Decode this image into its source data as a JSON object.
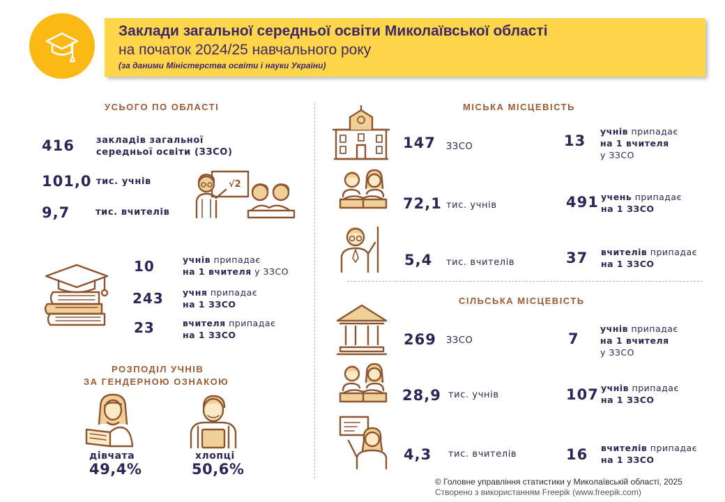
{
  "header": {
    "title_line1": "Заклади загальної середньої освіти Миколаївської області",
    "title_line2": "на початок 2024/25 навчального року",
    "source_note": "(за даними Міністерства освіти і науки України)"
  },
  "region_total": {
    "heading": "УСЬОГО ПО ОБЛАСТІ",
    "schools": {
      "value": "416",
      "label_line1": "закладів загальної",
      "label_line2": "середньої освіти (ЗЗСО)"
    },
    "students": {
      "value": "101,0",
      "label": "тис. учнів"
    },
    "teachers": {
      "value": "9,7",
      "label": "тис. вчителів"
    },
    "ratios": [
      {
        "value": "10",
        "bold1": "учнів",
        "rest1": " припадає",
        "bold2": "на 1 вчителя",
        "rest2": " у ЗЗСО"
      },
      {
        "value": "243",
        "bold1": "учня",
        "rest1": " припадає",
        "bold2": "на 1 ЗЗСО",
        "rest2": ""
      },
      {
        "value": "23",
        "bold1": "вчителя",
        "rest1": " припадає",
        "bold2": "на 1 ЗЗСО",
        "rest2": ""
      }
    ]
  },
  "gender": {
    "heading_line1": "РОЗПОДІЛ УЧНІВ",
    "heading_line2": "ЗА ГЕНДЕРНОЮ ОЗНАКОЮ",
    "girls": {
      "label": "дівчата",
      "value": "49,4%",
      "share": 49.4
    },
    "boys": {
      "label": "хлопці",
      "value": "50,6%",
      "share": 50.6
    }
  },
  "urban": {
    "heading": "МІСЬКА МІСЦЕВІСТЬ",
    "schools": {
      "value": "147",
      "label": "ЗЗСО"
    },
    "students": {
      "value": "72,1",
      "label": "тис. учнів"
    },
    "teachers": {
      "value": "5,4",
      "label": "тис. вчителів"
    },
    "ratio_students_per_teacher": {
      "value": "13",
      "bold1": "учнів",
      "rest1": " припадає",
      "bold2": "на 1 вчителя",
      "line3": "у ЗЗСО"
    },
    "ratio_students_per_school": {
      "value": "491",
      "bold1": "учень",
      "rest1": " припадає",
      "bold2": "на 1 ЗЗСО"
    },
    "ratio_teachers_per_school": {
      "value": "37",
      "bold1": "вчителів",
      "rest1": " припадає",
      "bold2": "на 1 ЗЗСО"
    }
  },
  "rural": {
    "heading": "СІЛЬСЬКА МІСЦЕВІСТЬ",
    "schools": {
      "value": "269",
      "label": "ЗЗСО"
    },
    "students": {
      "value": "28,9",
      "label": "тис. учнів"
    },
    "teachers": {
      "value": "4,3",
      "label": "тис. вчителів"
    },
    "ratio_students_per_teacher": {
      "value": "7",
      "bold1": "учнів",
      "rest1": " припадає",
      "bold2": "на 1 вчителя",
      "line3": "у ЗЗСО"
    },
    "ratio_students_per_school": {
      "value": "107",
      "bold1": "учнів",
      "rest1": " припадає",
      "bold2": "на 1 ЗЗСО"
    },
    "ratio_teachers_per_school": {
      "value": "16",
      "bold1": "вчителів",
      "rest1": " припадає",
      "bold2": "на 1 ЗЗСО"
    }
  },
  "footer": {
    "copyright": "© Головне управління статистики у Миколаївській області, 2025",
    "credit": "Створено з використанням Freepik (www.freepik.com)"
  },
  "icons": {
    "header": "graduation-cap-icon",
    "total": "teacher-with-pupils-icon",
    "ratios": "books-with-cap-icon",
    "girl": "girl-student-icon",
    "boy": "boy-student-icon",
    "urban_school": "school-building-icon",
    "rural_school": "rural-school-icon",
    "students": "students-icon",
    "urban_teacher": "male-teacher-icon",
    "rural_teacher": "female-teacher-icon"
  },
  "colors": {
    "header_bar": "#ffd64a",
    "header_circle": "#fbb916",
    "heading": "#9a5b34",
    "text": "#2f2455",
    "icon_stroke": "#8c5530",
    "icon_fill": "#f1cf98"
  }
}
